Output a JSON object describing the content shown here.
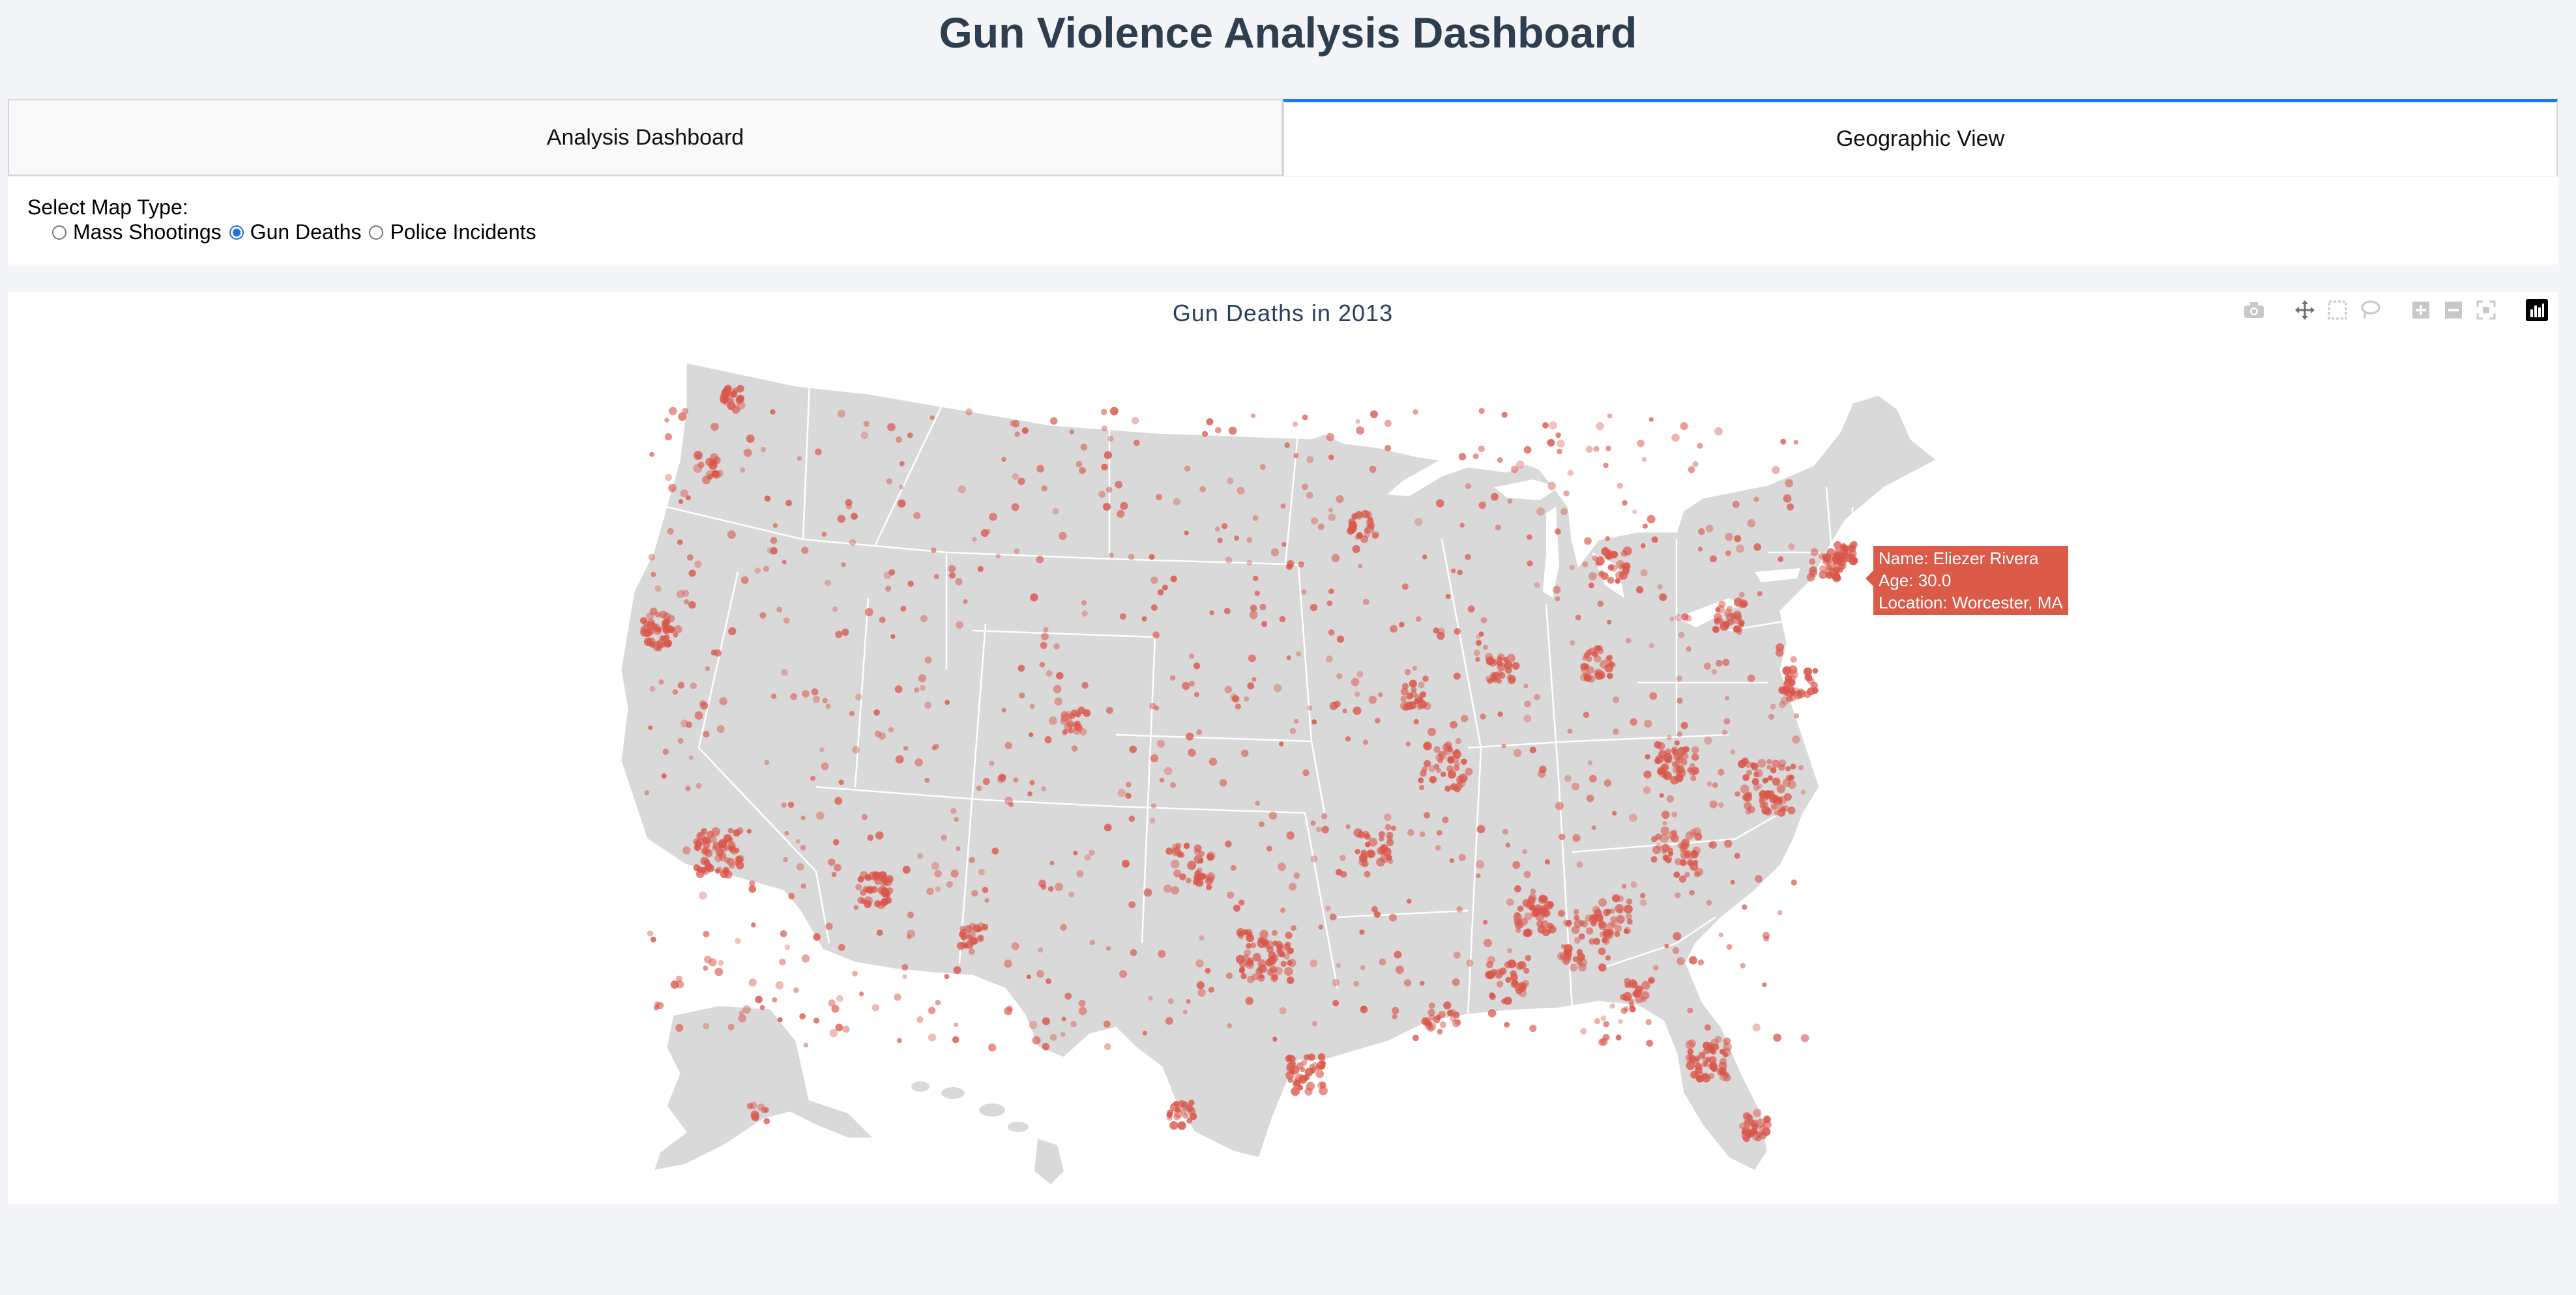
{
  "header": {
    "title": "Gun Violence Analysis Dashboard"
  },
  "tabs": [
    {
      "label": "Analysis Dashboard",
      "active": false
    },
    {
      "label": "Geographic View",
      "active": true
    }
  ],
  "controls": {
    "label": "Select Map Type:",
    "options": [
      {
        "label": "Mass Shootings",
        "checked": false
      },
      {
        "label": "Gun Deaths",
        "checked": true
      },
      {
        "label": "Police Incidents",
        "checked": false
      }
    ]
  },
  "graph": {
    "title": "Gun Deaths in 2013",
    "marker_color": "#d9564a",
    "land_color": "#d9d9d9",
    "border_color": "#ffffff",
    "modebar": [
      "camera-icon",
      "pan-icon",
      "box-select-icon",
      "lasso-icon",
      "zoom-in-icon",
      "zoom-out-icon",
      "reset-icon",
      "plotly-logo-icon"
    ],
    "tooltip": {
      "name": "Name: Eliezer Rivera",
      "age": "Age: 30.0",
      "location": "Location: Worcester, MA"
    }
  }
}
